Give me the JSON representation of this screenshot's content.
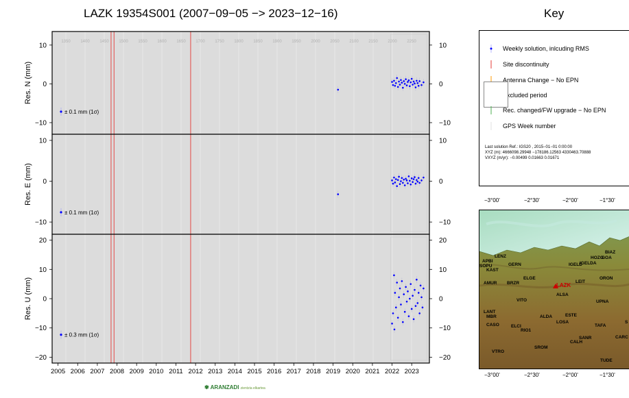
{
  "chart_data": {
    "type": "scatter",
    "title": "LAZK 19354S001 (2007−09−05 −> 2023−12−16)",
    "xlim": [
      2004.7,
      2023.9
    ],
    "x_ticks": [
      "2005",
      "2006",
      "2007",
      "2008",
      "2009",
      "2010",
      "2011",
      "2012",
      "2013",
      "2014",
      "2015",
      "2016",
      "2017",
      "2018",
      "2019",
      "2020",
      "2021",
      "2022",
      "2023"
    ],
    "gps_week_ticks": [
      "1350",
      "1400",
      "1450",
      "1500",
      "1550",
      "1600",
      "1650",
      "1700",
      "1750",
      "1800",
      "1850",
      "1900",
      "1950",
      "2000",
      "2050",
      "2100",
      "2150",
      "2200",
      "2250"
    ],
    "discontinuities": [
      2007.7,
      2007.85,
      2011.75
    ],
    "panels": [
      {
        "ylabel": "Res. N (mm)",
        "ylim": [
          -13,
          13.5
        ],
        "y_ticks": [
          -10,
          0,
          10
        ],
        "y_tick_labels": [
          "−10",
          "0",
          "10"
        ],
        "rms_label": "± 0.1 mm (1σ)",
        "points": [
          [
            2019.25,
            -1.5
          ],
          [
            2022.0,
            0.5
          ],
          [
            2022.05,
            -0.3
          ],
          [
            2022.1,
            0.8
          ],
          [
            2022.15,
            -0.5
          ],
          [
            2022.2,
            0.2
          ],
          [
            2022.25,
            1.5
          ],
          [
            2022.3,
            -0.8
          ],
          [
            2022.35,
            0.6
          ],
          [
            2022.4,
            -0.2
          ],
          [
            2022.45,
            1.0
          ],
          [
            2022.5,
            0.3
          ],
          [
            2022.55,
            -1.0
          ],
          [
            2022.6,
            0.7
          ],
          [
            2022.65,
            0.0
          ],
          [
            2022.7,
            1.2
          ],
          [
            2022.75,
            -0.4
          ],
          [
            2022.8,
            0.5
          ],
          [
            2022.85,
            0.9
          ],
          [
            2022.9,
            -0.6
          ],
          [
            2022.95,
            0.4
          ],
          [
            2023.0,
            1.3
          ],
          [
            2023.05,
            -0.2
          ],
          [
            2023.1,
            0.6
          ],
          [
            2023.15,
            0.1
          ],
          [
            2023.2,
            -0.9
          ],
          [
            2023.25,
            0.8
          ],
          [
            2023.3,
            0.2
          ],
          [
            2023.35,
            -0.5
          ],
          [
            2023.4,
            0.7
          ],
          [
            2023.5,
            -0.3
          ],
          [
            2023.6,
            0.4
          ]
        ]
      },
      {
        "ylabel": "Res. E (mm)",
        "ylim": [
          -13,
          11.5
        ],
        "y_ticks": [
          -10,
          0,
          10
        ],
        "y_tick_labels": [
          "−10",
          "0",
          "10"
        ],
        "rms_label": "± 0.1 mm (1σ)",
        "points": [
          [
            2019.25,
            -3.2
          ],
          [
            2022.0,
            0.2
          ],
          [
            2022.05,
            -0.6
          ],
          [
            2022.1,
            0.9
          ],
          [
            2022.15,
            -0.3
          ],
          [
            2022.2,
            0.5
          ],
          [
            2022.25,
            -1.2
          ],
          [
            2022.3,
            0.3
          ],
          [
            2022.35,
            1.1
          ],
          [
            2022.4,
            -0.7
          ],
          [
            2022.45,
            0.0
          ],
          [
            2022.5,
            0.8
          ],
          [
            2022.55,
            -0.4
          ],
          [
            2022.6,
            0.4
          ],
          [
            2022.65,
            -1.0
          ],
          [
            2022.7,
            0.6
          ],
          [
            2022.75,
            0.2
          ],
          [
            2022.8,
            -0.5
          ],
          [
            2022.85,
            1.2
          ],
          [
            2022.9,
            0.1
          ],
          [
            2022.95,
            -0.8
          ],
          [
            2023.0,
            0.7
          ],
          [
            2023.05,
            -0.2
          ],
          [
            2023.1,
            0.5
          ],
          [
            2023.15,
            1.0
          ],
          [
            2023.2,
            -0.6
          ],
          [
            2023.25,
            0.3
          ],
          [
            2023.3,
            -0.1
          ],
          [
            2023.35,
            0.8
          ],
          [
            2023.4,
            -0.4
          ],
          [
            2023.5,
            0.2
          ],
          [
            2023.6,
            0.9
          ]
        ]
      },
      {
        "ylabel": "Res. U (mm)",
        "ylim": [
          -22,
          22
        ],
        "y_ticks": [
          -20,
          -10,
          0,
          10,
          20
        ],
        "y_tick_labels": [
          "−20",
          "−10",
          "0",
          "10",
          "20"
        ],
        "rms_label": "± 0.3 mm (1σ)",
        "points": [
          [
            2022.0,
            -8.5
          ],
          [
            2022.05,
            -5.0
          ],
          [
            2022.1,
            8.0
          ],
          [
            2022.12,
            -10.5
          ],
          [
            2022.15,
            2.0
          ],
          [
            2022.2,
            -3.0
          ],
          [
            2022.25,
            5.5
          ],
          [
            2022.3,
            -6.5
          ],
          [
            2022.35,
            0.5
          ],
          [
            2022.4,
            3.5
          ],
          [
            2022.45,
            -2.0
          ],
          [
            2022.5,
            6.0
          ],
          [
            2022.55,
            -8.0
          ],
          [
            2022.6,
            1.5
          ],
          [
            2022.65,
            -4.5
          ],
          [
            2022.7,
            4.0
          ],
          [
            2022.75,
            -1.0
          ],
          [
            2022.8,
            2.5
          ],
          [
            2022.85,
            -6.0
          ],
          [
            2022.9,
            0.0
          ],
          [
            2022.95,
            5.0
          ],
          [
            2023.0,
            -3.5
          ],
          [
            2023.05,
            1.0
          ],
          [
            2023.1,
            -7.0
          ],
          [
            2023.15,
            3.0
          ],
          [
            2023.2,
            -2.5
          ],
          [
            2023.25,
            6.5
          ],
          [
            2023.3,
            -1.5
          ],
          [
            2023.35,
            2.0
          ],
          [
            2023.4,
            -5.0
          ],
          [
            2023.45,
            4.5
          ],
          [
            2023.5,
            0.5
          ],
          [
            2023.55,
            -3.0
          ],
          [
            2023.6,
            3.5
          ]
        ]
      }
    ]
  },
  "key": {
    "title": "Key",
    "items": [
      {
        "label": "Weekly solution, inlcuding RMS",
        "symbol": "dot-with-bar",
        "color": "#0000ff"
      },
      {
        "label": "Site discontinuity",
        "symbol": "vline",
        "color": "#e53935"
      },
      {
        "label": "Antenna Change − No EPN",
        "symbol": "vline",
        "color": "#ff9800"
      },
      {
        "label": "Excluded period",
        "symbol": "box",
        "color": "#ffffff"
      },
      {
        "label": "Rec. changed/FW upgrade − No EPN",
        "symbol": "vline",
        "color": "#4caf50"
      },
      {
        "label": "GPS Week number",
        "symbol": "none",
        "color": "#999999"
      }
    ],
    "footer_lines": [
      "Last solution Ref.: IGS20 , 2015−01−01  0:00:00",
      "XYZ (m):  4666098.29948  −178186.12563  4330463.70888",
      "VXYZ (m/yr):     −0.00499      0.01663      0.01671"
    ]
  },
  "map": {
    "lon_labels": [
      "−3°00'",
      "−2°30'",
      "−2°00'",
      "−1°30'"
    ],
    "stations": [
      {
        "name": "LAZK",
        "highlight": true
      },
      {
        "name": "BIAZ"
      },
      {
        "name": "HOZG"
      },
      {
        "name": "GOA"
      },
      {
        "name": "LENZ"
      },
      {
        "name": "APBI"
      },
      {
        "name": "SOPU"
      },
      {
        "name": "KAST"
      },
      {
        "name": "GERN"
      },
      {
        "name": "IGELD"
      },
      {
        "name": "IGELDA"
      },
      {
        "name": "ELGE"
      },
      {
        "name": "LEIT"
      },
      {
        "name": "ORON"
      },
      {
        "name": "AMUR"
      },
      {
        "name": "BRZR"
      },
      {
        "name": "ALSA"
      },
      {
        "name": "VITO"
      },
      {
        "name": "UPNA"
      },
      {
        "name": "ALDA"
      },
      {
        "name": "ESTE"
      },
      {
        "name": "LANT"
      },
      {
        "name": "MBR"
      },
      {
        "name": "LOSA"
      },
      {
        "name": "TAFA"
      },
      {
        "name": "CASO"
      },
      {
        "name": "ELCI"
      },
      {
        "name": "RIO1"
      },
      {
        "name": "SANR"
      },
      {
        "name": "CALH"
      },
      {
        "name": "CARC"
      },
      {
        "name": "SROM"
      },
      {
        "name": "VTRO"
      },
      {
        "name": "TUDE"
      },
      {
        "name": "S"
      }
    ]
  },
  "logo": {
    "name": "ARANZADI",
    "subtitle": "zientzia elkartea"
  },
  "colors": {
    "panel_bg": "#dcdcdc",
    "point": "#0000ff",
    "discontinuity": "#e53935"
  }
}
